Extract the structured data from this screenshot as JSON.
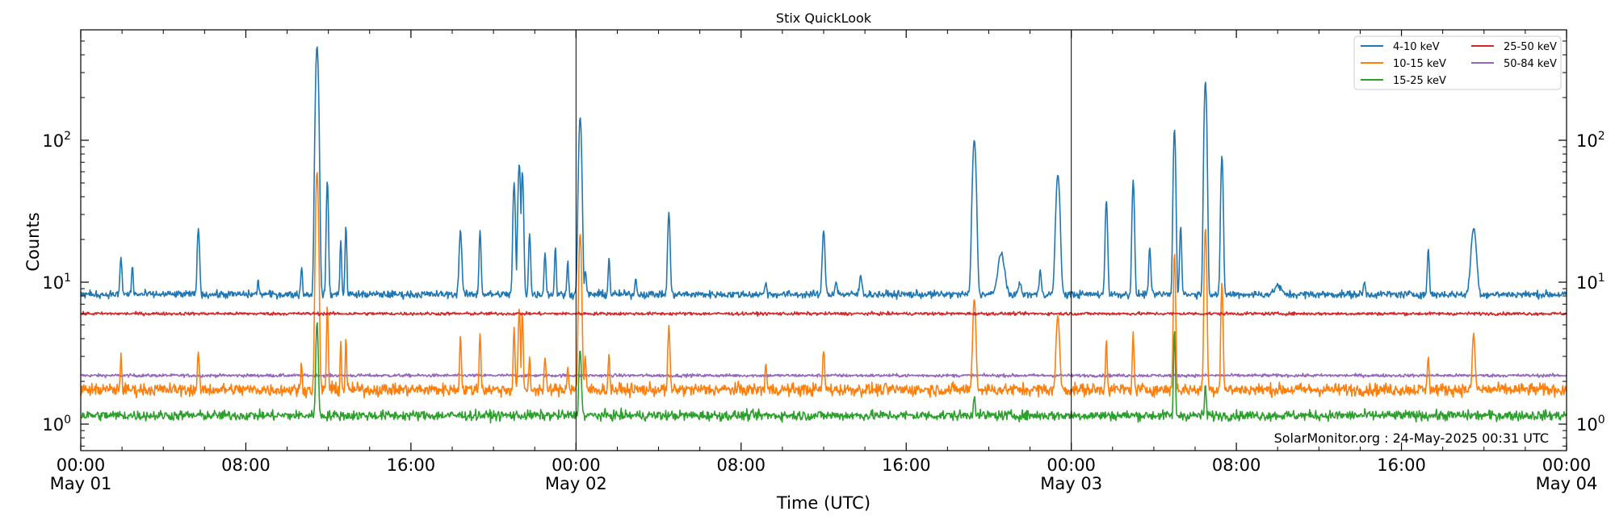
{
  "chart_data": {
    "type": "line",
    "title": "Stix QuickLook",
    "xlabel": "Time (UTC)",
    "ylabel": "Counts",
    "yscale": "log",
    "ylim": [
      0.65,
      600
    ],
    "xlim_hours": [
      0,
      72
    ],
    "x_ticks": [
      {
        "hour": 0,
        "time": "00:00",
        "date": "May 01"
      },
      {
        "hour": 8,
        "time": "08:00",
        "date": ""
      },
      {
        "hour": 16,
        "time": "16:00",
        "date": ""
      },
      {
        "hour": 24,
        "time": "00:00",
        "date": "May 02"
      },
      {
        "hour": 32,
        "time": "08:00",
        "date": ""
      },
      {
        "hour": 40,
        "time": "16:00",
        "date": ""
      },
      {
        "hour": 48,
        "time": "00:00",
        "date": "May 03"
      },
      {
        "hour": 56,
        "time": "08:00",
        "date": ""
      },
      {
        "hour": 64,
        "time": "16:00",
        "date": ""
      },
      {
        "hour": 72,
        "time": "00:00",
        "date": "May 04"
      }
    ],
    "y_ticks": [
      {
        "value": 1,
        "base": "10",
        "exp": "0"
      },
      {
        "value": 10,
        "base": "10",
        "exp": "1"
      },
      {
        "value": 100,
        "base": "10",
        "exp": "2"
      }
    ],
    "day_separators_hours": [
      24,
      48
    ],
    "legend_position": "top-right",
    "credit": "SolarMonitor.org : 24-May-2025 00:31 UTC",
    "series": [
      {
        "name": "4-10 keV",
        "color": "#1f77b4",
        "baseline": 8.2,
        "noise": 0.06,
        "peaks": [
          {
            "t": 1.95,
            "v": 15,
            "w": 0.06
          },
          {
            "t": 2.5,
            "v": 13,
            "w": 0.05
          },
          {
            "t": 5.7,
            "v": 24,
            "w": 0.07
          },
          {
            "t": 8.6,
            "v": 10,
            "w": 0.06
          },
          {
            "t": 10.7,
            "v": 13,
            "w": 0.05
          },
          {
            "t": 11.45,
            "v": 460,
            "w": 0.09
          },
          {
            "t": 11.95,
            "v": 52,
            "w": 0.06
          },
          {
            "t": 12.6,
            "v": 20,
            "w": 0.05
          },
          {
            "t": 12.85,
            "v": 25,
            "w": 0.05
          },
          {
            "t": 18.4,
            "v": 23,
            "w": 0.08
          },
          {
            "t": 19.35,
            "v": 23,
            "w": 0.06
          },
          {
            "t": 21.0,
            "v": 50,
            "w": 0.07
          },
          {
            "t": 21.25,
            "v": 68,
            "w": 0.08
          },
          {
            "t": 21.4,
            "v": 60,
            "w": 0.07
          },
          {
            "t": 21.75,
            "v": 22,
            "w": 0.06
          },
          {
            "t": 22.5,
            "v": 16,
            "w": 0.06
          },
          {
            "t": 23.0,
            "v": 18,
            "w": 0.05
          },
          {
            "t": 23.6,
            "v": 14,
            "w": 0.05
          },
          {
            "t": 24.2,
            "v": 145,
            "w": 0.09
          },
          {
            "t": 24.45,
            "v": 12,
            "w": 0.06
          },
          {
            "t": 25.6,
            "v": 15,
            "w": 0.05
          },
          {
            "t": 26.9,
            "v": 11,
            "w": 0.05
          },
          {
            "t": 28.5,
            "v": 31,
            "w": 0.07
          },
          {
            "t": 33.2,
            "v": 10,
            "w": 0.06
          },
          {
            "t": 36.0,
            "v": 23,
            "w": 0.08
          },
          {
            "t": 36.6,
            "v": 10,
            "w": 0.08
          },
          {
            "t": 37.8,
            "v": 11,
            "w": 0.08
          },
          {
            "t": 43.3,
            "v": 100,
            "w": 0.11
          },
          {
            "t": 44.6,
            "v": 16,
            "w": 0.2
          },
          {
            "t": 45.5,
            "v": 10,
            "w": 0.08
          },
          {
            "t": 46.5,
            "v": 12,
            "w": 0.07
          },
          {
            "t": 47.35,
            "v": 57,
            "w": 0.12
          },
          {
            "t": 49.7,
            "v": 38,
            "w": 0.07
          },
          {
            "t": 51.0,
            "v": 52,
            "w": 0.07
          },
          {
            "t": 51.8,
            "v": 18,
            "w": 0.06
          },
          {
            "t": 53.0,
            "v": 120,
            "w": 0.07
          },
          {
            "t": 53.3,
            "v": 25,
            "w": 0.06
          },
          {
            "t": 54.5,
            "v": 260,
            "w": 0.08
          },
          {
            "t": 55.3,
            "v": 78,
            "w": 0.07
          },
          {
            "t": 58.0,
            "v": 9.5,
            "w": 0.2
          },
          {
            "t": 62.2,
            "v": 10,
            "w": 0.06
          },
          {
            "t": 65.3,
            "v": 17,
            "w": 0.06
          },
          {
            "t": 67.5,
            "v": 24,
            "w": 0.16
          }
        ]
      },
      {
        "name": "10-15 keV",
        "color": "#ff7f0e",
        "baseline": 1.75,
        "noise": 0.1,
        "peaks": [
          {
            "t": 1.95,
            "v": 3.0,
            "w": 0.05
          },
          {
            "t": 5.7,
            "v": 3.3,
            "w": 0.05
          },
          {
            "t": 10.7,
            "v": 2.8,
            "w": 0.04
          },
          {
            "t": 11.45,
            "v": 60,
            "w": 0.08
          },
          {
            "t": 11.95,
            "v": 6.8,
            "w": 0.05
          },
          {
            "t": 12.6,
            "v": 3.8,
            "w": 0.04
          },
          {
            "t": 12.85,
            "v": 4.1,
            "w": 0.04
          },
          {
            "t": 18.4,
            "v": 4.3,
            "w": 0.05
          },
          {
            "t": 19.35,
            "v": 4.4,
            "w": 0.05
          },
          {
            "t": 21.0,
            "v": 4.8,
            "w": 0.05
          },
          {
            "t": 21.25,
            "v": 6.6,
            "w": 0.06
          },
          {
            "t": 21.4,
            "v": 6.0,
            "w": 0.05
          },
          {
            "t": 21.75,
            "v": 2.9,
            "w": 0.05
          },
          {
            "t": 22.5,
            "v": 3.0,
            "w": 0.05
          },
          {
            "t": 23.6,
            "v": 2.6,
            "w": 0.05
          },
          {
            "t": 24.2,
            "v": 22,
            "w": 0.08
          },
          {
            "t": 24.45,
            "v": 2.9,
            "w": 0.05
          },
          {
            "t": 25.6,
            "v": 3.1,
            "w": 0.05
          },
          {
            "t": 28.5,
            "v": 4.9,
            "w": 0.06
          },
          {
            "t": 33.2,
            "v": 2.7,
            "w": 0.05
          },
          {
            "t": 36.0,
            "v": 3.3,
            "w": 0.06
          },
          {
            "t": 43.3,
            "v": 7.6,
            "w": 0.09
          },
          {
            "t": 47.35,
            "v": 5.8,
            "w": 0.1
          },
          {
            "t": 49.7,
            "v": 4.0,
            "w": 0.05
          },
          {
            "t": 51.0,
            "v": 4.4,
            "w": 0.05
          },
          {
            "t": 53.0,
            "v": 16,
            "w": 0.06
          },
          {
            "t": 54.5,
            "v": 24,
            "w": 0.07
          },
          {
            "t": 55.3,
            "v": 10,
            "w": 0.06
          },
          {
            "t": 65.3,
            "v": 3.1,
            "w": 0.05
          },
          {
            "t": 67.5,
            "v": 4.3,
            "w": 0.08
          }
        ]
      },
      {
        "name": "15-25 keV",
        "color": "#2ca02c",
        "baseline": 1.15,
        "noise": 0.08,
        "peaks": [
          {
            "t": 11.45,
            "v": 5.2,
            "w": 0.07
          },
          {
            "t": 24.2,
            "v": 3.4,
            "w": 0.07
          },
          {
            "t": 53.0,
            "v": 4.6,
            "w": 0.05
          },
          {
            "t": 54.5,
            "v": 1.9,
            "w": 0.05
          },
          {
            "t": 43.3,
            "v": 1.6,
            "w": 0.06
          }
        ]
      },
      {
        "name": "25-50 keV",
        "color": "#d62728",
        "baseline": 6.0,
        "noise": 0.025,
        "peaks": []
      },
      {
        "name": "50-84 keV",
        "color": "#9467bd",
        "baseline": 2.2,
        "noise": 0.025,
        "peaks": []
      }
    ]
  }
}
